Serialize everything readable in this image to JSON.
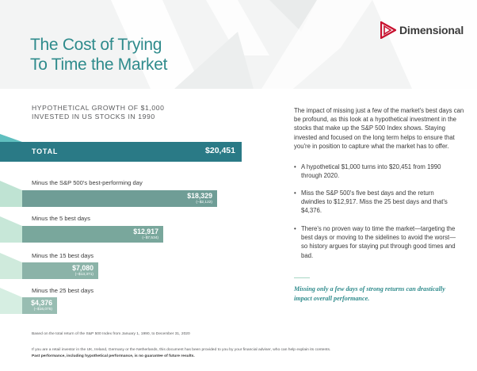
{
  "header": {
    "title_line1": "The Cost of Trying",
    "title_line2": "To Time the Market",
    "logo_text": "Dimensional",
    "logo_icon": "dimensional-logo-icon",
    "title_color": "#2f8b8c"
  },
  "chart": {
    "subhead_line1": "HYPOTHETICAL GROWTH OF $1,000",
    "subhead_line2": "INVESTED IN US STOCKS IN 1990",
    "total": {
      "label": "TOTAL",
      "value": "$20,451",
      "color": "#2a7a86"
    },
    "rows": [
      {
        "label": "Minus the S&P 500's best-performing day",
        "value": "$18,329",
        "diff": "(−$2,122)",
        "color": "#6f9d96"
      },
      {
        "label": "Minus the 5 best days",
        "value": "$12,917",
        "diff": "(−$7,534)",
        "color": "#79a79c"
      },
      {
        "label": "Minus the 15 best days",
        "value": "$7,080",
        "diff": "(−$13,371)",
        "color": "#8bb3a8"
      },
      {
        "label": "Minus the 25 best days",
        "value": "$4,376",
        "diff": "(−$16,075)",
        "color": "#98bdb2"
      }
    ]
  },
  "chart_data": {
    "type": "bar",
    "title": "HYPOTHETICAL GROWTH OF $1,000 INVESTED IN US STOCKS IN 1990",
    "categories": [
      "TOTAL",
      "Minus the S&P 500's best-performing day",
      "Minus the 5 best days",
      "Minus the 15 best days",
      "Minus the 25 best days"
    ],
    "values": [
      20451,
      18329,
      12917,
      7080,
      4376
    ],
    "differences": [
      0,
      -2122,
      -7534,
      -13371,
      -16075
    ],
    "xlim": [
      0,
      20451
    ]
  },
  "body": {
    "intro": "The impact of missing just a few of the market's best days can be profound, as this look at a hypothetical investment in the stocks that make up the S&P 500 Index shows. Staying invested and focused on the long term helps to ensure that you're in position to capture what the market has to offer.",
    "bullet_symbol": "•",
    "bullets": [
      "A hypothetical $1,000 turns into $20,451 from 1990 through 2020.",
      "Miss the S&P 500's five best days and the return dwindles to $12,917. Miss the 25 best days and that's $4,376.",
      "There's no proven way to time the market—targeting the best days or moving to the sidelines to avoid the worst—so history argues for staying put through good times and bad."
    ],
    "callout": "Missing only a few days of strong returns can drastically impact overall performance."
  },
  "footer": {
    "note": "Based on the total return of the S&P 500 Index from January 1, 1990, to December 31, 2020",
    "disclaimer": "If you are a retail investor in the UK, Ireland, Germany or the Netherlands, this document has been provided to you by your financial adviser, who can help explain its contents.",
    "past_performance": "Past performance, including hypothetical performance, is no guarantee of future results."
  }
}
